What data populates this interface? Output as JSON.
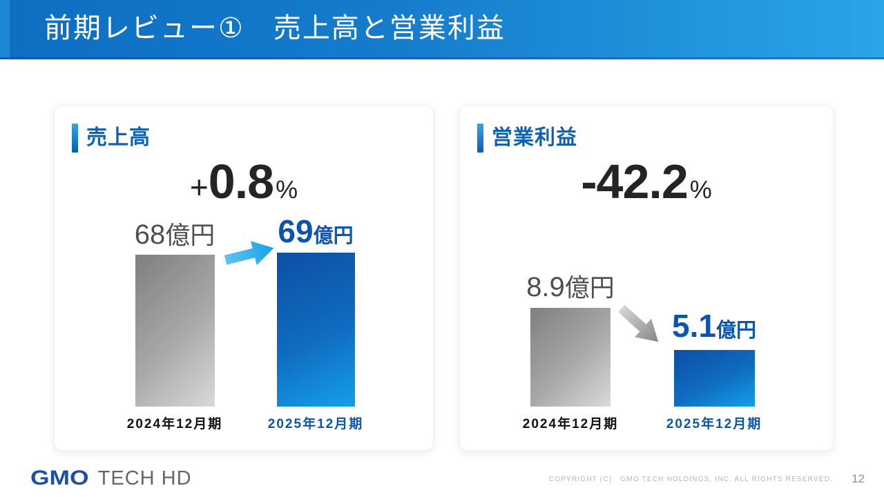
{
  "header": {
    "title": "前期レビュー①　売上高と営業利益"
  },
  "cards": [
    {
      "title": "売上高",
      "change": {
        "sign": "+",
        "value": "0.8",
        "unit": "%"
      },
      "bars": [
        {
          "label_value": "68",
          "label_unit": "億円",
          "period": "2024年12月期"
        },
        {
          "label_value": "69",
          "label_unit": "億円",
          "period": "2025年12月期"
        }
      ],
      "arrow_direction": "up-right"
    },
    {
      "title": "営業利益",
      "change": {
        "sign": "",
        "value": "-42.2",
        "unit": "%"
      },
      "bars": [
        {
          "label_value": "8.9",
          "label_unit": "億円",
          "period": "2024年12月期"
        },
        {
          "label_value": "5.1",
          "label_unit": "億円",
          "period": "2025年12月期"
        }
      ],
      "arrow_direction": "down-right"
    }
  ],
  "footer": {
    "logo_primary": "GMO",
    "logo_secondary": "TECH HD",
    "copyright": "COPYRIGHT (C)   GMO TECH HOLDINGS, INC. ALL RIGHTS RESERVED.",
    "page_number": "12"
  },
  "colors": {
    "header_gradient_left": "#0d6ec2",
    "header_gradient_right": "#2aa4e9",
    "title_blue": "#0f62b2",
    "bar_blue_dark": "#0d4fa4",
    "bar_blue_light": "#14a0e8",
    "bar_gray_dark": "#7f7f7f",
    "bar_gray_light": "#dadada",
    "label_gray": "#4f4f4f",
    "label_blue": "#0b55ac",
    "arrow_blue": "#2fa9e9",
    "arrow_gray": "#a0a0a0"
  },
  "chart_data": [
    {
      "type": "bar",
      "title": "売上高",
      "categories": [
        "2024年12月期",
        "2025年12月期"
      ],
      "values": [
        68,
        69
      ],
      "unit": "億円",
      "change_pct": "+0.8%",
      "ylabel": "",
      "xlabel": "",
      "grid": false,
      "legend": false
    },
    {
      "type": "bar",
      "title": "営業利益",
      "categories": [
        "2024年12月期",
        "2025年12月期"
      ],
      "values": [
        8.9,
        5.1
      ],
      "unit": "億円",
      "change_pct": "-42.2%",
      "ylabel": "",
      "xlabel": "",
      "grid": false,
      "legend": false
    }
  ]
}
